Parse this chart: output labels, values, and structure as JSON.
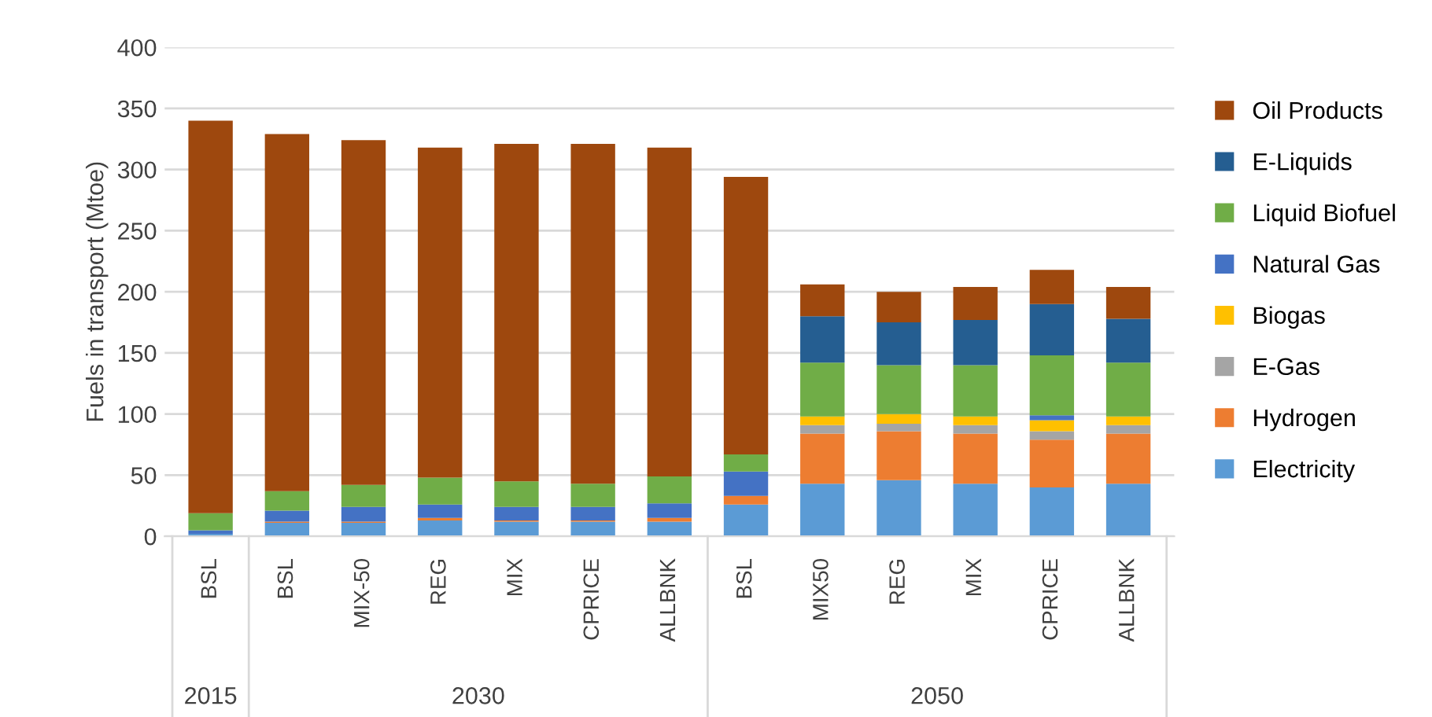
{
  "chart_data": {
    "type": "bar",
    "stacked": true,
    "ylabel": "Fuels in transport (Mtoe)",
    "categories": [
      "BSL",
      "BSL",
      "MIX-50",
      "REG",
      "MIX",
      "CPRICE",
      "ALLBNK",
      "BSL",
      "MIX50",
      "REG",
      "MIX",
      "CPRICE",
      "ALLBNK"
    ],
    "series": [
      {
        "name": "Electricity",
        "color": "#5b9bd5",
        "values": [
          2,
          11,
          11,
          13,
          12,
          12,
          12,
          26,
          43,
          46,
          43,
          40,
          43
        ]
      },
      {
        "name": "Hydrogen",
        "color": "#ed7d31",
        "values": [
          0,
          1,
          1,
          2,
          1,
          1,
          3,
          7,
          41,
          40,
          41,
          39,
          41
        ]
      },
      {
        "name": "E-Gas",
        "color": "#a5a5a5",
        "values": [
          0,
          0,
          0,
          0,
          0,
          0,
          0,
          0,
          7,
          6,
          7,
          7,
          7
        ]
      },
      {
        "name": "Biogas",
        "color": "#ffc000",
        "values": [
          0,
          0,
          0,
          0,
          0,
          0,
          0,
          0,
          7,
          8,
          7,
          9,
          7
        ]
      },
      {
        "name": "Natural Gas",
        "color": "#4472c4",
        "values": [
          3,
          9,
          12,
          11,
          11,
          11,
          12,
          20,
          0,
          0,
          0,
          4,
          0
        ]
      },
      {
        "name": "Liquid Biofuel",
        "color": "#70ad47",
        "values": [
          14,
          16,
          18,
          22,
          21,
          19,
          22,
          14,
          44,
          40,
          42,
          49,
          44
        ]
      },
      {
        "name": "E-Liquids",
        "color": "#255e91",
        "values": [
          0,
          0,
          0,
          0,
          0,
          0,
          0,
          0,
          38,
          35,
          37,
          42,
          36
        ]
      },
      {
        "name": "Oil Products",
        "color": "#9e480e",
        "values": [
          321,
          292,
          282,
          270,
          276,
          278,
          269,
          227,
          26,
          25,
          27,
          28,
          26
        ]
      }
    ],
    "ylim": [
      0,
      400
    ],
    "yticks": [
      0,
      50,
      100,
      150,
      200,
      250,
      300,
      350,
      400
    ],
    "grid": "y",
    "legend": "right",
    "annotations": [
      "2015",
      "2030",
      "2050"
    ]
  }
}
